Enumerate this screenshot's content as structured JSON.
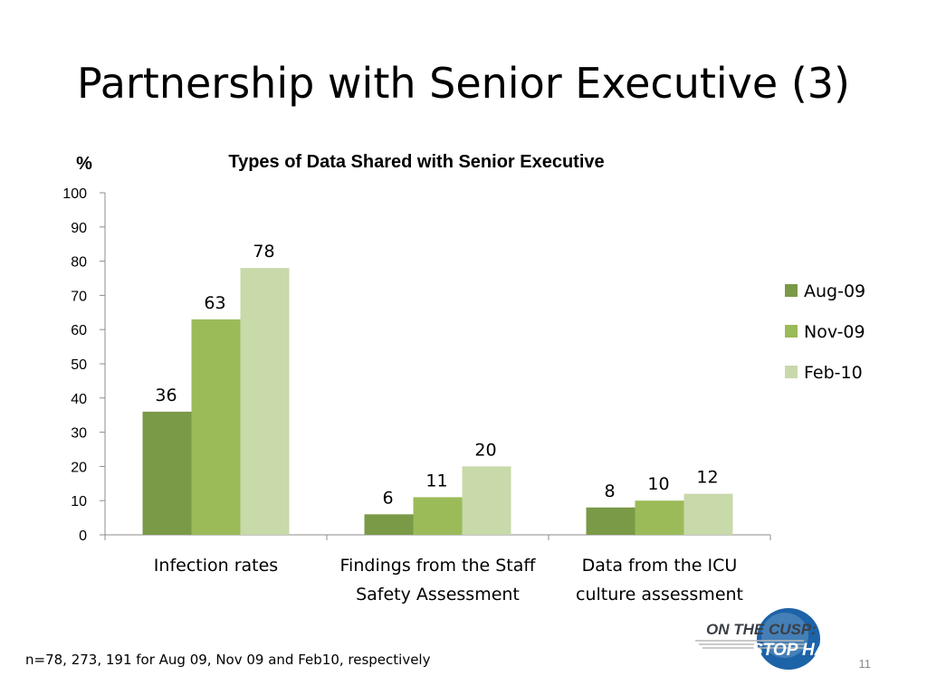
{
  "slide": {
    "title": "Partnership with Senior Executive (3)",
    "footnote": "n=78, 273, 191 for Aug 09, Nov 09 and Feb10, respectively",
    "page_number": "11",
    "logo": {
      "line1": "ON THE CUSP:",
      "line2": "STOP HAI"
    }
  },
  "chart_data": {
    "type": "bar",
    "title": "Types of Data Shared with Senior Executive",
    "ylabel": "%",
    "xlabel": "",
    "ylim": [
      0,
      100
    ],
    "yticks": [
      0,
      10,
      20,
      30,
      40,
      50,
      60,
      70,
      80,
      90,
      100
    ],
    "grid": false,
    "legend_position": "right",
    "categories": [
      [
        "Infection rates"
      ],
      [
        "Findings from the Staff",
        "Safety Assessment"
      ],
      [
        "Data from the ICU",
        "culture assessment"
      ]
    ],
    "series": [
      {
        "name": "Aug-09",
        "color": "#7a9a47",
        "values": [
          36,
          6,
          8
        ]
      },
      {
        "name": "Nov-09",
        "color": "#9bbb59",
        "values": [
          63,
          11,
          10
        ]
      },
      {
        "name": "Feb-10",
        "color": "#c8d9aa",
        "values": [
          78,
          20,
          12
        ]
      }
    ]
  }
}
